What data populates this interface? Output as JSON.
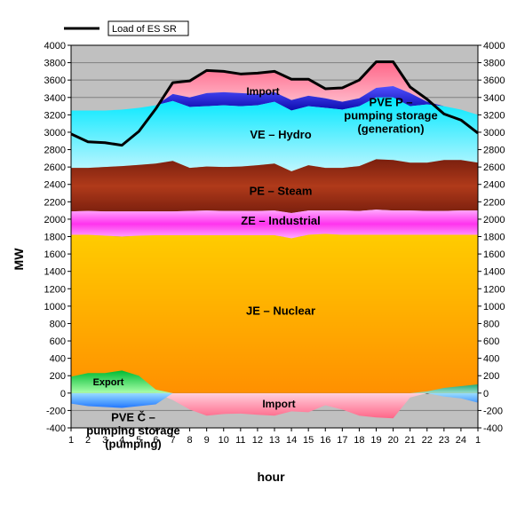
{
  "chart_data": {
    "type": "area",
    "ylabel": "MW",
    "xlabel": "hour",
    "ylim": [
      -400,
      4000
    ],
    "y_ticks": [
      -400,
      -200,
      0,
      200,
      400,
      600,
      800,
      1000,
      1200,
      1400,
      1600,
      1800,
      2000,
      2200,
      2400,
      2600,
      2800,
      3000,
      3200,
      3400,
      3600,
      3800,
      4000
    ],
    "x_ticks": [
      "1",
      "2",
      "3",
      "4",
      "5",
      "6",
      "7",
      "8",
      "9",
      "10",
      "11",
      "12",
      "13",
      "14",
      "15",
      "16",
      "17",
      "18",
      "19",
      "20",
      "21",
      "22",
      "23",
      "24",
      "1"
    ],
    "grid": true,
    "legend_position": "top-left",
    "legend": [
      {
        "name": "Load of ES SR",
        "color": "#000000"
      }
    ],
    "stack_top_series": [
      {
        "name": "JE – Nuclear",
        "label": "JE – Nuclear",
        "color": "#ffb000",
        "top": [
          1820,
          1820,
          1810,
          1800,
          1810,
          1815,
          1815,
          1815,
          1815,
          1815,
          1815,
          1815,
          1815,
          1780,
          1820,
          1830,
          1820,
          1820,
          1820,
          1820,
          1820,
          1820,
          1820,
          1820,
          1820
        ]
      },
      {
        "name": "ZE – Industrial",
        "label": "ZE – Industrial",
        "color": "#ff55ee",
        "top": [
          2090,
          2095,
          2090,
          2090,
          2090,
          2090,
          2090,
          2095,
          2100,
          2095,
          2095,
          2095,
          2100,
          2070,
          2100,
          2100,
          2100,
          2095,
          2110,
          2100,
          2100,
          2095,
          2095,
          2100,
          2100
        ]
      },
      {
        "name": "PE – Steam",
        "label": "PE – Steam",
        "color": "#9b2d14",
        "top": [
          2590,
          2590,
          2600,
          2610,
          2625,
          2640,
          2670,
          2590,
          2605,
          2600,
          2605,
          2620,
          2640,
          2550,
          2620,
          2590,
          2590,
          2610,
          2690,
          2680,
          2650,
          2650,
          2680,
          2680,
          2650
        ]
      },
      {
        "name": "VE – Hydro",
        "label": "VE – Hydro",
        "color": "#33e0ff",
        "top": [
          3250,
          3250,
          3250,
          3260,
          3280,
          3310,
          3360,
          3290,
          3300,
          3310,
          3300,
          3310,
          3350,
          3250,
          3300,
          3280,
          3260,
          3300,
          3400,
          3400,
          3300,
          3320,
          3300,
          3260,
          3200
        ]
      },
      {
        "name": "PVE P – pumping storage (generation)",
        "label": "PVE P –|pumping storage|(generation)",
        "color": "#1010d0",
        "top": [
          3250,
          3250,
          3250,
          3260,
          3280,
          3310,
          3440,
          3400,
          3450,
          3460,
          3450,
          3440,
          3460,
          3370,
          3420,
          3390,
          3350,
          3390,
          3510,
          3530,
          3450,
          3350,
          3300,
          3260,
          3200
        ]
      },
      {
        "name": "Import",
        "label": "Import",
        "color": "#ff9ab0",
        "top": [
          3250,
          3250,
          3250,
          3260,
          3280,
          3310,
          3570,
          3580,
          3710,
          3710,
          3680,
          3690,
          3700,
          3620,
          3620,
          3490,
          3510,
          3600,
          3810,
          3810,
          3520,
          3350,
          3300,
          3260,
          3200
        ]
      }
    ],
    "negative_series": [
      {
        "name": "Import",
        "label": "Import",
        "color": "#ff9ab0",
        "values": [
          0,
          0,
          0,
          0,
          0,
          0,
          -80,
          -190,
          -260,
          -240,
          -235,
          -250,
          -260,
          -210,
          -220,
          -140,
          -190,
          -260,
          -280,
          -290,
          -50,
          0,
          0,
          0,
          0
        ]
      },
      {
        "name": "PVE Č – pumping storage (pumping)",
        "label": "PVE Č –|pumping storage|(pumping)",
        "color": "#44aaff",
        "values": [
          -120,
          -150,
          -160,
          -170,
          -150,
          -130,
          0,
          0,
          0,
          0,
          0,
          0,
          0,
          0,
          0,
          0,
          0,
          0,
          0,
          0,
          0,
          0,
          -40,
          -60,
          -110
        ]
      }
    ],
    "export_series": {
      "name": "Export",
      "label": "Export",
      "color": "#22cc55",
      "values": [
        190,
        230,
        230,
        260,
        200,
        40,
        0,
        0,
        0,
        0,
        0,
        0,
        0,
        0,
        0,
        0,
        0,
        0,
        0,
        0,
        0,
        20,
        60,
        80,
        100
      ]
    },
    "load_series": {
      "name": "Load of ES SR",
      "color": "#000000",
      "values": [
        2980,
        2890,
        2880,
        2850,
        3010,
        3270,
        3570,
        3590,
        3710,
        3700,
        3670,
        3680,
        3700,
        3610,
        3610,
        3500,
        3510,
        3600,
        3810,
        3810,
        3520,
        3380,
        3210,
        3140,
        2990
      ]
    }
  }
}
